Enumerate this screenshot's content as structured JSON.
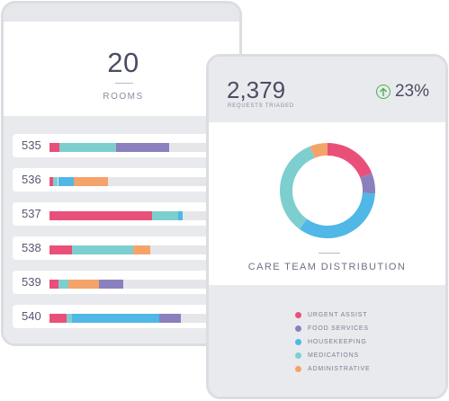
{
  "colors": {
    "urgent": "#e8507a",
    "food": "#8b80bd",
    "housekeeping": "#50b7e6",
    "medications": "#7dcfcf",
    "administrative": "#f4a36b",
    "track": "#e6e6ea",
    "up": "#4caf50"
  },
  "rooms_card": {
    "count": "20",
    "label": "ROOMS",
    "rows": [
      {
        "room": "535",
        "segments": [
          {
            "cat": "urgent",
            "share": 0.06
          },
          {
            "cat": "medications",
            "share": 0.33
          },
          {
            "cat": "food",
            "share": 0.31
          }
        ]
      },
      {
        "room": "536",
        "segments": [
          {
            "cat": "urgent",
            "share": 0.02
          },
          {
            "cat": "medications",
            "share": 0.03
          },
          {
            "cat": "housekeeping",
            "share": 0.09
          },
          {
            "cat": "administrative",
            "share": 0.2
          }
        ]
      },
      {
        "room": "537",
        "segments": [
          {
            "cat": "urgent",
            "share": 0.6
          },
          {
            "cat": "medications",
            "share": 0.15
          },
          {
            "cat": "housekeeping",
            "share": 0.03
          }
        ]
      },
      {
        "room": "538",
        "segments": [
          {
            "cat": "urgent",
            "share": 0.13
          },
          {
            "cat": "medications",
            "share": 0.36
          },
          {
            "cat": "administrative",
            "share": 0.1
          }
        ]
      },
      {
        "room": "539",
        "segments": [
          {
            "cat": "urgent",
            "share": 0.05
          },
          {
            "cat": "medications",
            "share": 0.06
          },
          {
            "cat": "administrative",
            "share": 0.18
          },
          {
            "cat": "food",
            "share": 0.14
          }
        ]
      },
      {
        "room": "540",
        "segments": [
          {
            "cat": "urgent",
            "share": 0.1
          },
          {
            "cat": "medications",
            "share": 0.03
          },
          {
            "cat": "housekeeping",
            "share": 0.51
          },
          {
            "cat": "food",
            "share": 0.13
          }
        ]
      }
    ]
  },
  "dist_card": {
    "requests_value": "2,379",
    "requests_label": "REQUESTS TRIAGED",
    "change_value": "23%",
    "title": "CARE TEAM DISTRIBUTION",
    "donut": [
      {
        "cat": "urgent",
        "share": 0.19
      },
      {
        "cat": "food",
        "share": 0.07
      },
      {
        "cat": "housekeeping",
        "share": 0.34
      },
      {
        "cat": "medications",
        "share": 0.34
      },
      {
        "cat": "administrative",
        "share": 0.06
      }
    ],
    "legend": [
      {
        "cat": "urgent",
        "label": "URGENT ASSIST"
      },
      {
        "cat": "food",
        "label": "FOOD SERVICES"
      },
      {
        "cat": "housekeeping",
        "label": "HOUSEKEEPING"
      },
      {
        "cat": "medications",
        "label": "MEDICATIONS"
      },
      {
        "cat": "administrative",
        "label": "ADMINISTRATIVE"
      }
    ]
  }
}
